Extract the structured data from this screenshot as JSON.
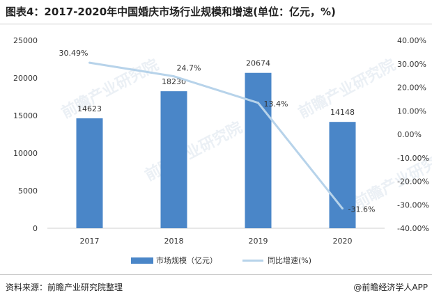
{
  "title": "图表4：2017-2020年中国婚庆市场行业规模和增速(单位：亿元，%)",
  "source": "资料来源：前瞻产业研究院整理",
  "credit": "@前瞻经济学人APP",
  "watermark": "前瞻产业研究院",
  "colors": {
    "bar": "#4a86c8",
    "line": "#b7d3ea",
    "grid": "#e6e6e6",
    "axis": "#999999"
  },
  "chart_data": {
    "type": "bar",
    "categories": [
      "2017",
      "2018",
      "2019",
      "2020"
    ],
    "series": [
      {
        "name": "市场规模（亿元）",
        "type": "bar",
        "axis": "left",
        "values": [
          14623,
          18230,
          20674,
          14148
        ],
        "labels": [
          "14623",
          "18230",
          "20674",
          "14148"
        ]
      },
      {
        "name": "同比增速(%)",
        "type": "line",
        "axis": "right",
        "values": [
          30.49,
          24.7,
          13.4,
          -31.6
        ],
        "labels": [
          "30.49%",
          "24.7%",
          "13.4%",
          "-31.6%"
        ]
      }
    ],
    "y_left": {
      "min": 0,
      "max": 25000,
      "ticks": [
        "0",
        "5000",
        "10000",
        "15000",
        "20000",
        "25000"
      ]
    },
    "y_right": {
      "min": -40,
      "max": 40,
      "ticks": [
        "-40.00%",
        "-30.00%",
        "-20.00%",
        "-10.00%",
        "0.00%",
        "10.00%",
        "20.00%",
        "30.00%",
        "40.00%"
      ]
    },
    "grid": false,
    "legend": "bottom-center"
  }
}
